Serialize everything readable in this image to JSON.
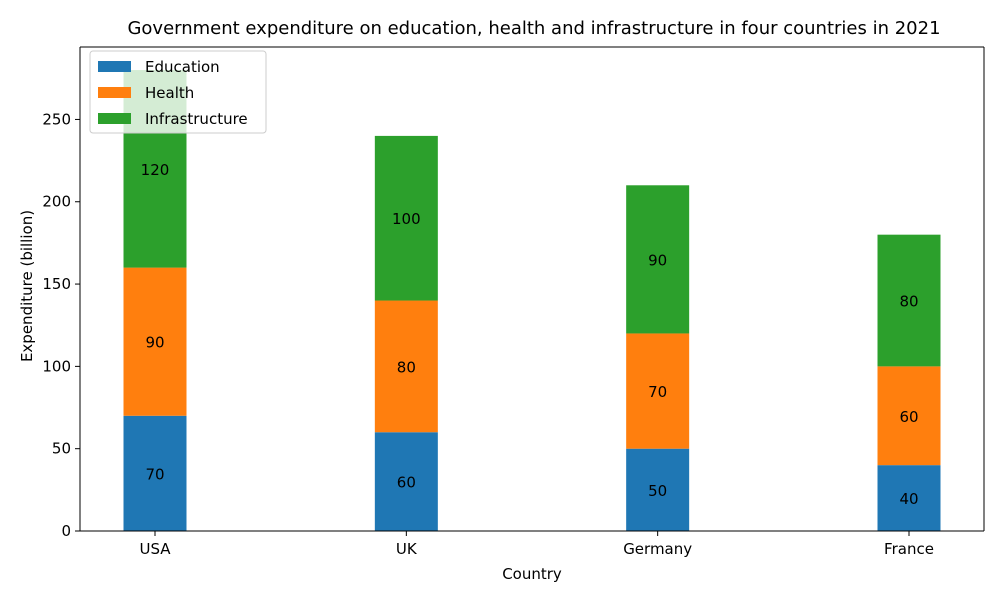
{
  "chart_data": {
    "type": "bar",
    "stacked": true,
    "title": "Government expenditure on education, health and infrastructure in four countries in 2021",
    "xlabel": "Country",
    "ylabel": "Expenditure (billion)",
    "categories": [
      "USA",
      "UK",
      "Germany",
      "France"
    ],
    "series": [
      {
        "name": "Education",
        "values": [
          70,
          60,
          50,
          40
        ],
        "color": "#1f77b4"
      },
      {
        "name": "Health",
        "values": [
          90,
          80,
          70,
          60
        ],
        "color": "#ff7f0e"
      },
      {
        "name": "Infrastructure",
        "values": [
          120,
          100,
          90,
          80
        ],
        "color": "#2ca02c"
      }
    ],
    "ylim": [
      0,
      294
    ],
    "yticks": [
      0,
      50,
      100,
      150,
      200,
      250
    ],
    "grid": false,
    "legend_position": "top-left",
    "data_labels": true
  }
}
